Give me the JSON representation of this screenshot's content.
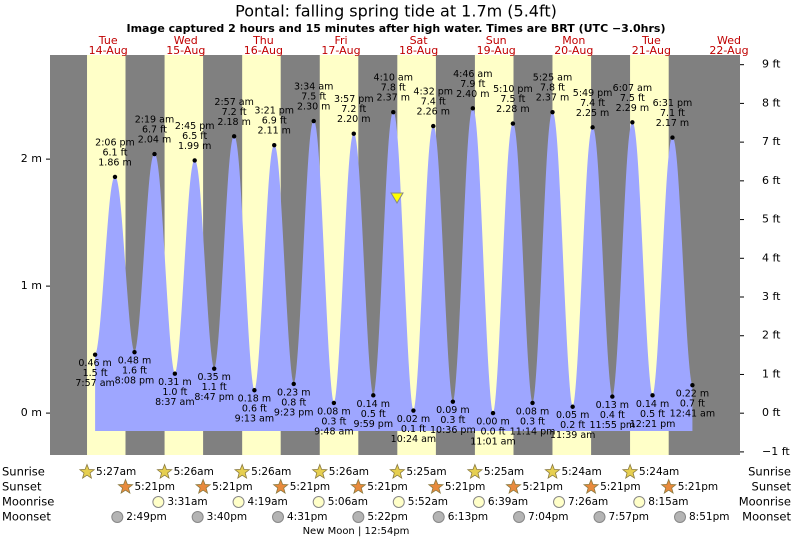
{
  "chart_data": {
    "type": "tide",
    "title": "Pontal: falling  spring tide at 1.7m (5.4ft)",
    "subtitle": "Image captured 2 hours and 15 minutes after high water. Times are BRT (UTC −3.0hrs)",
    "color": "#9ea6ff",
    "ylim": [
      -0.33,
      2.82
    ],
    "yticks": [
      {
        "value": 0,
        "label": "0 m"
      },
      {
        "value": 1,
        "label": "1 m"
      },
      {
        "value": 2,
        "label": "2 m"
      }
    ],
    "y2lim": [
      -1.08,
      9.25
    ],
    "y2ticks": [
      {
        "value": -1,
        "label": "−1 ft"
      },
      {
        "value": 0,
        "label": "0 ft"
      },
      {
        "value": 1,
        "label": "1 ft"
      },
      {
        "value": 2,
        "label": "2 ft"
      },
      {
        "value": 3,
        "label": "3 ft"
      },
      {
        "value": 4,
        "label": "4 ft"
      },
      {
        "value": 5,
        "label": "5 ft"
      },
      {
        "value": 6,
        "label": "6 ft"
      },
      {
        "value": 7,
        "label": "7 ft"
      },
      {
        "value": 8,
        "label": "8 ft"
      },
      {
        "value": 9,
        "label": "9 ft"
      }
    ],
    "row_labels": [
      "Sunrise",
      "Sunset",
      "Moonrise",
      "Moonset"
    ],
    "moon_phase": "New Moon | 12:54pm",
    "days": [
      {
        "name": "Tue",
        "date": "14-Aug",
        "sunrise": "5:27am",
        "sunset": "5:21pm",
        "moonrise": null,
        "moonset": "2:49pm",
        "tide_times": [
          "7:57 am",
          "2:06 pm",
          "8:08 pm"
        ],
        "values": [
          0.46,
          1.86,
          0.48
        ],
        "value_labels": [
          "0.46 m",
          "1.86 m",
          "0.48 m"
        ],
        "feet_labels": [
          "1.5 ft",
          "6.1 ft",
          "1.6 ft"
        ]
      },
      {
        "name": "Wed",
        "date": "15-Aug",
        "sunrise": "5:26am",
        "sunset": "5:21pm",
        "moonrise": "3:31am",
        "moonset": "3:40pm",
        "tide_times": [
          "2:19 am",
          "8:37 am",
          "2:45 pm",
          "8:47 pm"
        ],
        "values": [
          2.04,
          0.31,
          1.99,
          0.35
        ],
        "value_labels": [
          "2.04 m",
          "0.31 m",
          "1.99 m",
          "0.35 m"
        ],
        "feet_labels": [
          "6.7 ft",
          "1.0 ft",
          "6.5 ft",
          "1.1 ft"
        ]
      },
      {
        "name": "Thu",
        "date": "16-Aug",
        "sunrise": "5:26am",
        "sunset": "5:21pm",
        "moonrise": "4:19am",
        "moonset": "4:31pm",
        "tide_times": [
          "2:57 am",
          "9:13 am",
          "3:21 pm",
          "9:23 pm"
        ],
        "values": [
          2.18,
          0.18,
          2.11,
          0.23
        ],
        "value_labels": [
          "2.18 m",
          "0.18 m",
          "2.11 m",
          "0.23 m"
        ],
        "feet_labels": [
          "7.2 ft",
          "0.6 ft",
          "6.9 ft",
          "0.8 ft"
        ]
      },
      {
        "name": "Fri",
        "date": "17-Aug",
        "sunrise": "5:26am",
        "sunset": "5:21pm",
        "moonrise": "5:06am",
        "moonset": "5:22pm",
        "tide_times": [
          "3:34 am",
          "9:48 am",
          "3:57 pm",
          "9:59 pm"
        ],
        "values": [
          2.3,
          0.08,
          2.2,
          0.14
        ],
        "value_labels": [
          "2.30 m",
          "0.08 m",
          "2.20 m",
          "0.14 m"
        ],
        "feet_labels": [
          "7.5 ft",
          "0.3 ft",
          "7.2 ft",
          "0.5 ft"
        ]
      },
      {
        "name": "Sat",
        "date": "18-Aug",
        "sunrise": "5:25am",
        "sunset": "5:21pm",
        "moonrise": "5:52am",
        "moonset": "6:13pm",
        "tide_times": [
          "4:10 am",
          "10:24 am",
          "4:32 pm",
          "10:36 pm"
        ],
        "values": [
          2.37,
          0.02,
          2.26,
          0.09
        ],
        "value_labels": [
          "2.37 m",
          "0.02 m",
          "2.26 m",
          "0.09 m"
        ],
        "feet_labels": [
          "7.8 ft",
          "0.1 ft",
          "7.4 ft",
          "0.3 ft"
        ]
      },
      {
        "name": "Sun",
        "date": "19-Aug",
        "sunrise": "5:25am",
        "sunset": "5:21pm",
        "moonrise": "6:39am",
        "moonset": "7:04pm",
        "tide_times": [
          "4:46 am",
          "11:01 am",
          "5:10 pm",
          "11:14 pm"
        ],
        "values": [
          2.4,
          0,
          2.28,
          0.08
        ],
        "value_labels": [
          "2.40 m",
          "0.00 m",
          "2.28 m",
          "0.08 m"
        ],
        "feet_labels": [
          "7.9 ft",
          "0.0 ft",
          "7.5 ft",
          "0.3 ft"
        ]
      },
      {
        "name": "Mon",
        "date": "20-Aug",
        "sunrise": "5:24am",
        "sunset": "5:21pm",
        "moonrise": "7:26am",
        "moonset": "7:57pm",
        "tide_times": [
          "5:25 am",
          "11:39 am",
          "5:49 pm",
          "11:55 pm"
        ],
        "values": [
          2.37,
          0.05,
          2.25,
          0.13
        ],
        "value_labels": [
          "2.37 m",
          "0.05 m",
          "2.25 m",
          "0.13 m"
        ],
        "feet_labels": [
          "7.8 ft",
          "0.2 ft",
          "7.4 ft",
          "0.4 ft"
        ]
      },
      {
        "name": "Tue",
        "date": "21-Aug",
        "sunrise": "5:24am",
        "sunset": "5:21pm",
        "moonrise": "8:15am",
        "moonset": "8:51pm",
        "tide_times": [
          "6:07 am",
          "12:21 pm",
          "6:31 pm"
        ],
        "values": [
          2.29,
          0.14,
          2.17
        ],
        "value_labels": [
          "2.29 m",
          "0.14 m",
          "2.17 m"
        ],
        "feet_labels": [
          "7.5 ft",
          "0.5 ft",
          "7.1 ft"
        ]
      },
      {
        "name": "Wed",
        "date": "22-Aug",
        "sunrise": null,
        "sunset": null,
        "moonrise": null,
        "moonset": null,
        "tide_times": [
          "12:41 am"
        ],
        "values": [
          0.22
        ],
        "value_labels": [
          "0.22 m"
        ],
        "feet_labels": [
          "0.7 ft"
        ]
      }
    ]
  }
}
